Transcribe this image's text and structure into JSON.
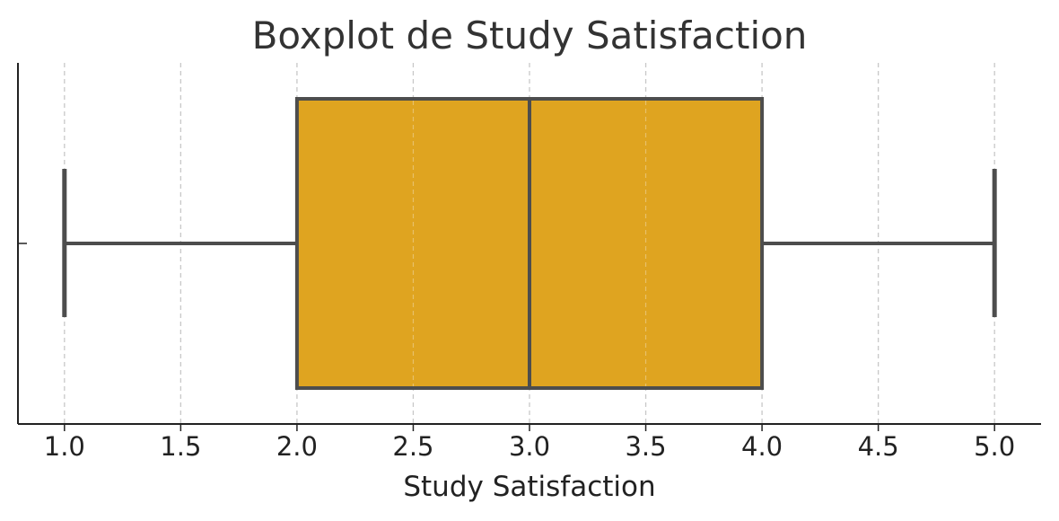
{
  "chart_data": {
    "type": "boxplot",
    "title": "Boxplot de Study Satisfaction",
    "xlabel": "Study Satisfaction",
    "ylabel": "",
    "xlim": [
      0.8,
      5.2
    ],
    "xticks": [
      "1.0",
      "1.5",
      "2.0",
      "2.5",
      "3.0",
      "3.5",
      "4.0",
      "4.5",
      "5.0"
    ],
    "grid": "vertical dashed",
    "box": {
      "min": 1.0,
      "q1": 2.0,
      "median": 3.0,
      "q3": 4.0,
      "max": 5.0,
      "color": "#dfa420",
      "line_color": "#4d4d4d"
    },
    "colors": {
      "grid": "#c8c8c8",
      "axis": "#222222"
    }
  }
}
